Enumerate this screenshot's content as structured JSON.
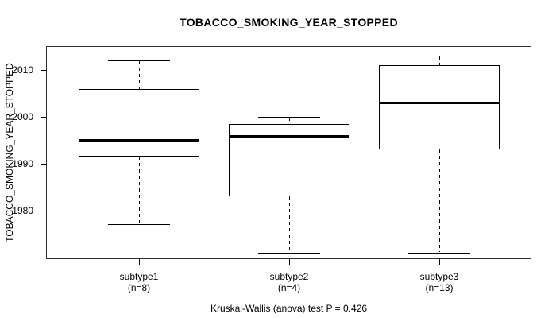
{
  "chart_data": {
    "type": "boxplot",
    "title": "TOBACCO_SMOKING_YEAR_STOPPED",
    "ylabel": "TOBACCO_SMOKING_YEAR_STOPPED",
    "xlabel": "",
    "footer": "Kruskal-Wallis (anova) test P = 0.426",
    "ylim": [
      1969.6,
      2015.1
    ],
    "yticks": [
      2010,
      2000,
      1990,
      1980
    ],
    "grid": false,
    "legend": "none",
    "whisker_style": "dashed",
    "line_color": "#000000",
    "background_color": "#ffffff",
    "groups": [
      {
        "label": "subtype1",
        "sublabel": "(n=8)",
        "n": 8,
        "stats": {
          "whisker_low": 1977,
          "q1": 1991.5,
          "median": 1995,
          "q3": 2006,
          "whisker_high": 2012
        }
      },
      {
        "label": "subtype2",
        "sublabel": "(n=4)",
        "n": 4,
        "stats": {
          "whisker_low": 1971,
          "q1": 1983,
          "median": 1996,
          "q3": 1998.5,
          "whisker_high": 2000
        }
      },
      {
        "label": "subtype3",
        "sublabel": "(n=13)",
        "n": 13,
        "stats": {
          "whisker_low": 1971,
          "q1": 1993,
          "median": 2003,
          "q3": 2011,
          "whisker_high": 2013
        }
      }
    ]
  }
}
